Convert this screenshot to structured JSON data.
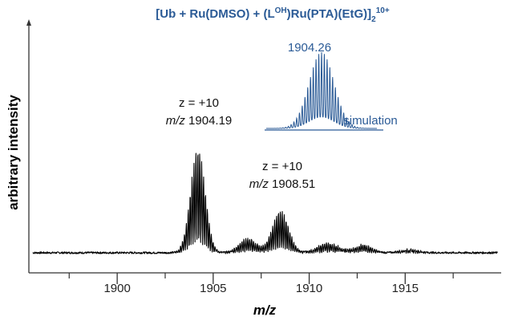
{
  "chart_data": {
    "type": "line",
    "title": {
      "part1": "[Ub + Ru(DMSO) + (L",
      "superscript": "OH",
      "part2": ")Ru(PTA)(EtG)]",
      "subscript": "2",
      "charge": "10+"
    },
    "xlabel": "m/z",
    "ylabel": "arbitrary intensity",
    "xlim": [
      1895.4,
      1920.0
    ],
    "ylim": [
      0,
      1
    ],
    "xticks": [
      1900,
      1905,
      1910,
      1915
    ],
    "xtick_labels": [
      "1900",
      "1905",
      "1910",
      "1915"
    ],
    "grid": false,
    "colors": {
      "experimental": "#000000",
      "simulation": "#2a5a96",
      "title": "#2a5a96"
    },
    "series": [
      {
        "role": "experimental",
        "peak_centers": [
          1904.2,
          1906.8,
          1908.5,
          1911.0,
          1912.8,
          1915.2
        ],
        "peak_heights": [
          0.64,
          0.09,
          0.26,
          0.06,
          0.05,
          0.02
        ],
        "peak_widths": [
          0.38,
          0.45,
          0.42,
          0.55,
          0.45,
          0.5
        ],
        "baseline": 0.025,
        "fine_spacing": 0.1
      },
      {
        "name": "simulation",
        "role": "simulation",
        "center": 1904.26,
        "height": 0.38,
        "width": 0.45,
        "fine_spacing": 0.1
      }
    ],
    "annotations": [
      {
        "line1": "z = +10",
        "mz_label": "m/z",
        "value": "1904.19"
      },
      {
        "line1": "z = +10",
        "mz_label": "m/z",
        "value": "1908.51"
      },
      {
        "text": "1904.26"
      },
      {
        "text": "simulation"
      }
    ]
  }
}
